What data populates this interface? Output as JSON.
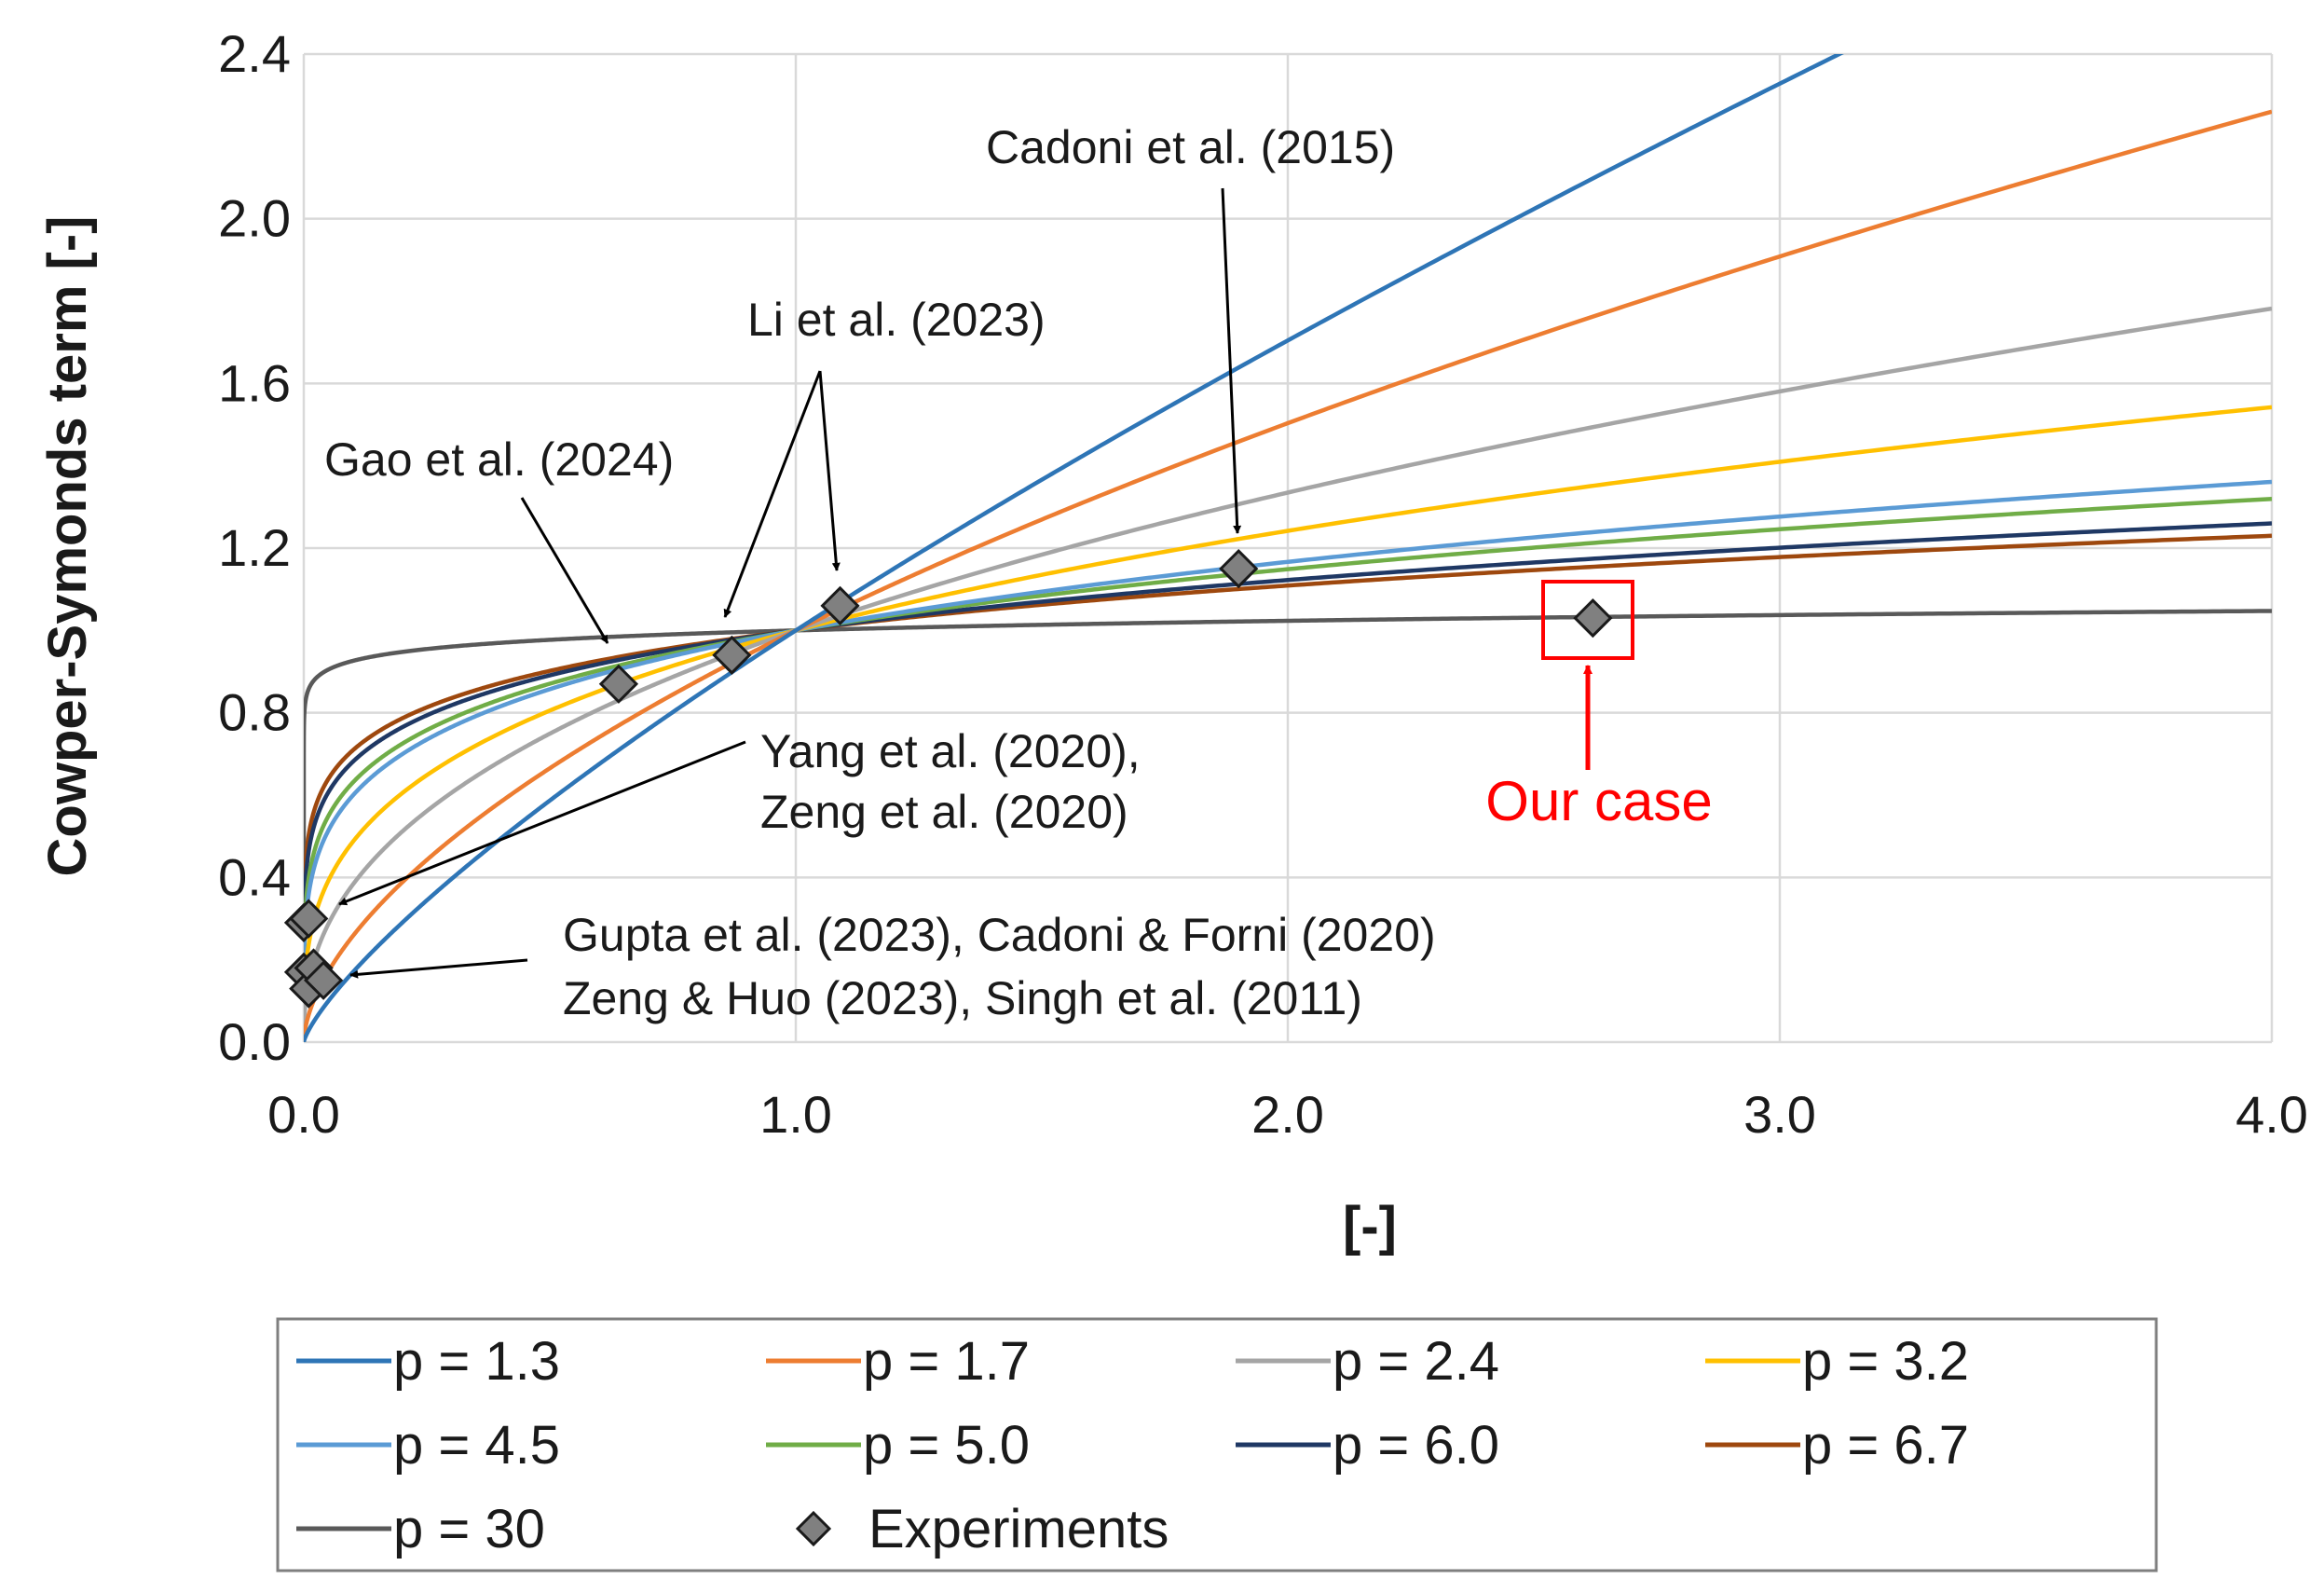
{
  "chart_data": {
    "type": "line",
    "title": "",
    "xlabel": "[-]",
    "ylabel": "Cowper-Symonds term [-]",
    "xlim": [
      0,
      4
    ],
    "ylim": [
      0,
      2.4
    ],
    "x_ticks": [
      "0.0",
      "1.0",
      "2.0",
      "3.0",
      "4.0"
    ],
    "y_ticks": [
      "0.0",
      "0.4",
      "0.8",
      "1.2",
      "1.6",
      "2.0",
      "2.4"
    ],
    "grid": true,
    "legend_position": "bottom",
    "formula": "y = x^(1/p)",
    "series": [
      {
        "name": "p = 1.3",
        "p": 1.3,
        "color": "#2e75b6"
      },
      {
        "name": "p = 1.7",
        "p": 1.7,
        "color": "#ed7d31"
      },
      {
        "name": "p = 2.4",
        "p": 2.4,
        "color": "#a5a5a5"
      },
      {
        "name": "p = 3.2",
        "p": 3.2,
        "color": "#ffc000"
      },
      {
        "name": "p = 4.5",
        "p": 4.5,
        "color": "#5b9bd5"
      },
      {
        "name": "p = 5.0",
        "p": 5.0,
        "color": "#70ad47"
      },
      {
        "name": "p = 6.0",
        "p": 6.0,
        "color": "#1f3864"
      },
      {
        "name": "p = 6.7",
        "p": 6.7,
        "color": "#9e480e"
      },
      {
        "name": "p = 30",
        "p": 30,
        "color": "#595959"
      }
    ],
    "experiments": {
      "name": "Experiments",
      "color": "#808080",
      "points": [
        {
          "x": 0.0,
          "y": 0.29
        },
        {
          "x": 0.01,
          "y": 0.3
        },
        {
          "x": 0.0,
          "y": 0.17
        },
        {
          "x": 0.01,
          "y": 0.13
        },
        {
          "x": 0.02,
          "y": 0.18
        },
        {
          "x": 0.04,
          "y": 0.15
        },
        {
          "x": 0.64,
          "y": 0.87
        },
        {
          "x": 0.87,
          "y": 0.94
        },
        {
          "x": 1.09,
          "y": 1.06
        },
        {
          "x": 1.9,
          "y": 1.15
        },
        {
          "x": 2.62,
          "y": 1.03
        }
      ]
    },
    "annotations": [
      {
        "text": "Cadoni et al. (2015)"
      },
      {
        "text": "Li et al. (2023)"
      },
      {
        "text": "Gao et al. (2024)"
      },
      {
        "text": "Yang et al. (2020),"
      },
      {
        "text": "Zeng et al. (2020)"
      },
      {
        "text": "Gupta et al. (2023), Cadoni & Forni (2020)"
      },
      {
        "text": "Zeng & Huo (2023), Singh et al. (2011)"
      },
      {
        "text": "Our case",
        "color": "#ff0000"
      }
    ]
  }
}
